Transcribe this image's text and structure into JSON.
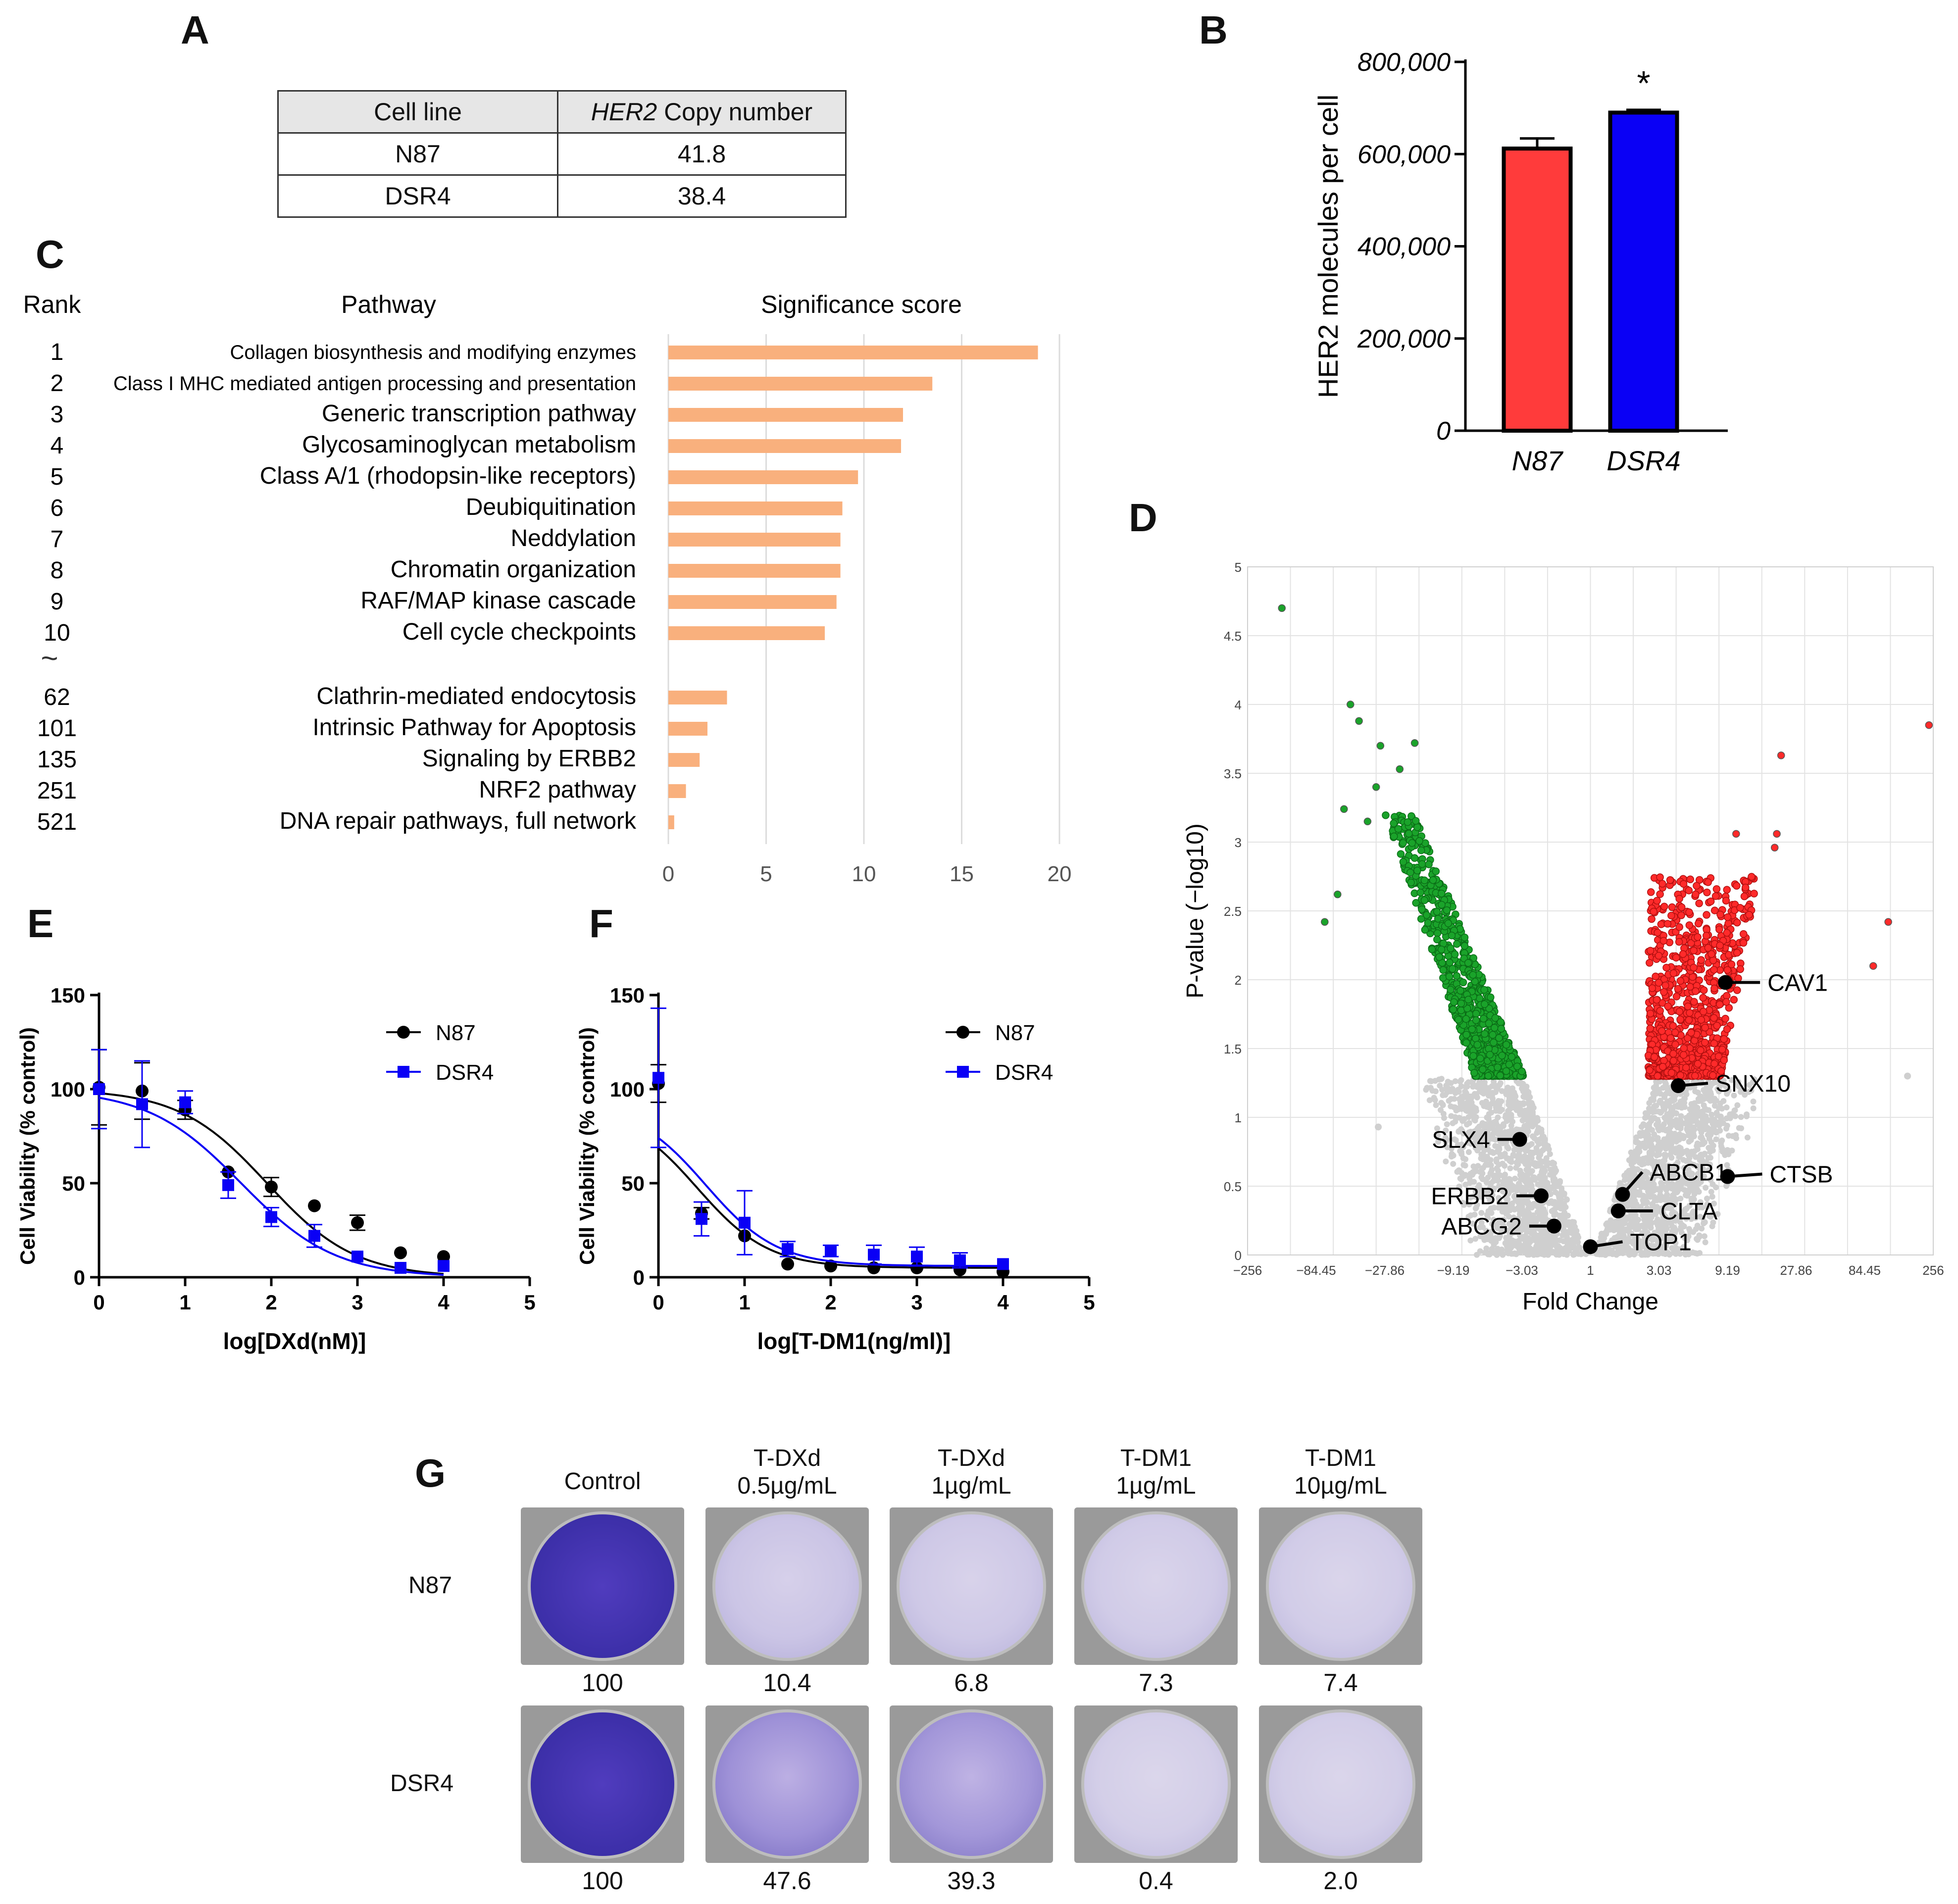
{
  "panels": {
    "a": "A",
    "b": "B",
    "c": "C",
    "d": "D",
    "e": "E",
    "f": "F",
    "g": "G"
  },
  "table_a": {
    "headers": [
      "Cell line",
      "HER2",
      "Copy number"
    ],
    "rows": [
      {
        "cell": "N87",
        "copy": "41.8"
      },
      {
        "cell": "DSR4",
        "copy": "38.4"
      }
    ]
  },
  "chart_data": [
    {
      "id": "B",
      "type": "bar",
      "categories": [
        "N87",
        "DSR4"
      ],
      "values": [
        612000,
        690000
      ],
      "errors": [
        22000,
        6000
      ],
      "colors": [
        "#ff3b3b",
        "#0a00f5"
      ],
      "ylabel": "HER2 molecules per cell",
      "ylim": [
        0,
        800000
      ],
      "yticks": [
        "0",
        "200,000",
        "400,000",
        "600,000",
        "800,000"
      ],
      "ytick_values": [
        0,
        200000,
        400000,
        600000,
        800000
      ],
      "annotation": "*"
    },
    {
      "id": "C",
      "type": "bar",
      "orientation": "horizontal",
      "headers": {
        "rank": "Rank",
        "pathway": "Pathway",
        "score": "Significance score"
      },
      "break_symbol": "~",
      "color": "#f9b07d",
      "xlim": [
        0,
        20
      ],
      "xticks": [
        "0",
        "5",
        "10",
        "15",
        "20"
      ],
      "xtick_values": [
        0,
        5,
        10,
        15,
        20
      ],
      "rows": [
        {
          "rank": "1",
          "pathway": "Collagen biosynthesis and modifying enzymes",
          "value": 18.9
        },
        {
          "rank": "2",
          "pathway": "Class I MHC mediated antigen processing and presentation",
          "value": 13.5
        },
        {
          "rank": "3",
          "pathway": "Generic transcription pathway",
          "value": 12.0
        },
        {
          "rank": "4",
          "pathway": "Glycosaminoglycan metabolism",
          "value": 11.9
        },
        {
          "rank": "5",
          "pathway": "Class A/1 (rhodopsin-like receptors)",
          "value": 9.7
        },
        {
          "rank": "6",
          "pathway": "Deubiquitination",
          "value": 8.9
        },
        {
          "rank": "7",
          "pathway": "Neddylation",
          "value": 8.8
        },
        {
          "rank": "8",
          "pathway": "Chromatin organization",
          "value": 8.8
        },
        {
          "rank": "9",
          "pathway": "RAF/MAP kinase cascade",
          "value": 8.6
        },
        {
          "rank": "10",
          "pathway": "Cell cycle checkpoints",
          "value": 8.0
        },
        {
          "rank": "62",
          "pathway": "Clathrin-mediated endocytosis",
          "value": 3.0
        },
        {
          "rank": "101",
          "pathway": "Intrinsic Pathway for Apoptosis",
          "value": 2.0
        },
        {
          "rank": "135",
          "pathway": "Signaling by ERBB2",
          "value": 1.6
        },
        {
          "rank": "251",
          "pathway": "NRF2 pathway",
          "value": 0.9
        },
        {
          "rank": "521",
          "pathway": "DNA repair pathways, full network",
          "value": 0.3
        }
      ]
    },
    {
      "id": "D",
      "type": "scatter",
      "subtype": "volcano",
      "xlabel": "Fold Change",
      "ylabel": "P-value (−log10)",
      "xticks": [
        "−256",
        "−84.45",
        "−27.86",
        "−9.19",
        "−3.03",
        "1",
        "3.03",
        "9.19",
        "27.86",
        "84.45",
        "256"
      ],
      "yticks": [
        "0",
        "0.5",
        "1",
        "1.5",
        "2",
        "2.5",
        "3",
        "3.5",
        "4",
        "4.5",
        "5"
      ],
      "ylim": [
        0,
        5
      ],
      "significance_threshold": 1.3,
      "colors": {
        "down": "#1aa32a",
        "up": "#ff2a2a",
        "ns": "#cfcfcf"
      },
      "labeled_genes": [
        {
          "gene": "CAV1",
          "log2fc": 3.15,
          "p": 1.98
        },
        {
          "gene": "SNX10",
          "log2fc": 2.05,
          "p": 1.23
        },
        {
          "gene": "SLX4",
          "log2fc": -1.65,
          "p": 0.84
        },
        {
          "gene": "ABCB1",
          "log2fc": 0.75,
          "p": 0.44
        },
        {
          "gene": "CTSB",
          "log2fc": 3.2,
          "p": 0.57
        },
        {
          "gene": "ERBB2",
          "log2fc": -1.15,
          "p": 0.43
        },
        {
          "gene": "CLTA",
          "log2fc": 0.65,
          "p": 0.32
        },
        {
          "gene": "ABCG2",
          "log2fc": -0.85,
          "p": 0.21
        },
        {
          "gene": "TOP1",
          "log2fc": 0.0,
          "p": 0.06
        }
      ],
      "outliers": [
        {
          "log2fc": -7.2,
          "p": 4.7,
          "cls": "down"
        },
        {
          "log2fc": -5.6,
          "p": 4.0,
          "cls": "down"
        },
        {
          "log2fc": -5.4,
          "p": 3.88,
          "cls": "down"
        },
        {
          "log2fc": -4.9,
          "p": 3.7,
          "cls": "down"
        },
        {
          "log2fc": -4.1,
          "p": 3.72,
          "cls": "down"
        },
        {
          "log2fc": -4.45,
          "p": 3.53,
          "cls": "down"
        },
        {
          "log2fc": -5.0,
          "p": 3.4,
          "cls": "down"
        },
        {
          "log2fc": -5.75,
          "p": 3.24,
          "cls": "down"
        },
        {
          "log2fc": -5.2,
          "p": 3.15,
          "cls": "down"
        },
        {
          "log2fc": -5.9,
          "p": 2.62,
          "cls": "down"
        },
        {
          "log2fc": -6.2,
          "p": 2.42,
          "cls": "down"
        },
        {
          "log2fc": 7.9,
          "p": 3.85,
          "cls": "up"
        },
        {
          "log2fc": 4.45,
          "p": 3.63,
          "cls": "up"
        },
        {
          "log2fc": 4.35,
          "p": 3.06,
          "cls": "up"
        },
        {
          "log2fc": 4.3,
          "p": 2.96,
          "cls": "up"
        },
        {
          "log2fc": 3.4,
          "p": 3.06,
          "cls": "up"
        },
        {
          "log2fc": 6.95,
          "p": 2.42,
          "cls": "up"
        },
        {
          "log2fc": 6.6,
          "p": 2.1,
          "cls": "up"
        },
        {
          "log2fc": 7.4,
          "p": 1.3,
          "cls": "ns"
        },
        {
          "log2fc": -4.95,
          "p": 0.93,
          "cls": "ns"
        }
      ]
    },
    {
      "id": "E",
      "type": "line",
      "xlabel": "log[DXd(nM)]",
      "ylabel": "Cell Viability (% control)",
      "xlim": [
        0,
        5
      ],
      "ylim": [
        0,
        150
      ],
      "xticks": [
        "0",
        "1",
        "2",
        "3",
        "4",
        "5"
      ],
      "yticks": [
        "0",
        "50",
        "100",
        "150"
      ],
      "series": [
        {
          "name": "N87",
          "color": "#000000",
          "marker": "circle",
          "x": [
            0,
            0.5,
            1,
            1.5,
            2,
            2.5,
            3,
            3.5,
            4
          ],
          "y": [
            101,
            99,
            89,
            56,
            48,
            38,
            29,
            13,
            11
          ],
          "err": [
            20,
            15,
            5,
            0,
            5,
            0,
            4,
            0,
            0
          ],
          "fit": {
            "top": 100,
            "bottom": 0,
            "ic50": 1.95,
            "hill": 0.85
          }
        },
        {
          "name": "DSR4",
          "color": "#0a00f5",
          "marker": "square",
          "x": [
            0,
            0.5,
            1,
            1.5,
            2,
            2.5,
            3,
            3.5,
            4
          ],
          "y": [
            100,
            92,
            93,
            49,
            32,
            22,
            11,
            5,
            6
          ],
          "err": [
            21,
            23,
            6,
            7,
            5,
            6,
            0,
            0,
            0
          ],
          "fit": {
            "top": 100,
            "bottom": 0,
            "ic50": 1.65,
            "hill": 0.8
          }
        }
      ]
    },
    {
      "id": "F",
      "type": "line",
      "xlabel": "log[T-DM1(ng/ml)]",
      "ylabel": "Cell Viability (% control)",
      "xlim": [
        0,
        5
      ],
      "ylim": [
        0,
        150
      ],
      "xticks": [
        "0",
        "1",
        "2",
        "3",
        "4",
        "5"
      ],
      "yticks": [
        "0",
        "50",
        "100",
        "150"
      ],
      "series": [
        {
          "name": "N87",
          "color": "#000000",
          "marker": "circle",
          "x": [
            0,
            0.5,
            1,
            1.5,
            2,
            2.5,
            3,
            3.5,
            4
          ],
          "y": [
            103,
            34,
            22,
            7,
            6,
            5,
            5,
            4,
            3
          ],
          "err": [
            10,
            3,
            0,
            0,
            0,
            0,
            0,
            0,
            0
          ],
          "fit": {
            "top": 90,
            "bottom": 5,
            "ic50": 0.45,
            "hill": 1.05
          }
        },
        {
          "name": "DSR4",
          "color": "#0a00f5",
          "marker": "square",
          "x": [
            0,
            0.5,
            1,
            1.5,
            2,
            2.5,
            3,
            3.5,
            4
          ],
          "y": [
            106,
            31,
            29,
            15,
            14,
            12,
            11,
            9,
            7
          ],
          "err": [
            37,
            9,
            17,
            4,
            3,
            5,
            5,
            4,
            0
          ],
          "fit": {
            "top": 92,
            "bottom": 6,
            "ic50": 0.55,
            "hill": 1.05
          }
        }
      ]
    }
  ],
  "panel_g": {
    "column_headers": [
      {
        "line1": "Control",
        "line2": ""
      },
      {
        "line1": "T-DXd",
        "line2": "0.5µg/mL"
      },
      {
        "line1": "T-DXd",
        "line2": "1µg/mL"
      },
      {
        "line1": "T-DM1",
        "line2": "1µg/mL"
      },
      {
        "line1": "T-DM1",
        "line2": "10µg/mL"
      }
    ],
    "rows": [
      {
        "label": "N87",
        "values": [
          "100",
          "10.4",
          "6.8",
          "7.3",
          "7.4"
        ],
        "stain": [
          1.0,
          0.12,
          0.09,
          0.07,
          0.06
        ]
      },
      {
        "label": "DSR4",
        "values": [
          "100",
          "47.6",
          "39.3",
          "0.4",
          "2.0"
        ],
        "stain": [
          1.0,
          0.55,
          0.5,
          0.04,
          0.05
        ]
      }
    ],
    "stain_color": "#3c2fa8"
  }
}
